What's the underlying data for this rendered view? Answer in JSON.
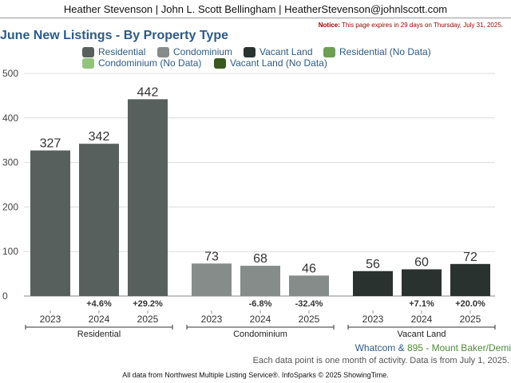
{
  "header": {
    "text": "Heather Stevenson | John L. Scott Bellingham | HeatherStevenson@johnlscott.com"
  },
  "notice": {
    "label": "Notice:",
    "text": "This page expires in 29 days on Thursday, July 31, 2025."
  },
  "legend": {
    "items": [
      {
        "label": "Residential",
        "color": "#58605d"
      },
      {
        "label": "Condominium",
        "color": "#858c89"
      },
      {
        "label": "Vacant Land",
        "color": "#2a3230"
      },
      {
        "label": "Residential (No Data)",
        "color": "#6e9f53"
      },
      {
        "label": "Condominium (No Data)",
        "color": "#93c47d"
      },
      {
        "label": "Vacant Land (No Data)",
        "color": "#37591f"
      }
    ]
  },
  "chart_data": {
    "type": "bar",
    "title": "June New Listings - By Property Type",
    "ylim": [
      0,
      500
    ],
    "yticks": [
      0,
      100,
      200,
      300,
      400,
      500
    ],
    "grid": true,
    "groups": [
      {
        "name": "Residential",
        "color": "#58605d",
        "bars": [
          {
            "year": "2023",
            "value": 327,
            "change": ""
          },
          {
            "year": "2024",
            "value": 342,
            "change": "+4.6%"
          },
          {
            "year": "2025",
            "value": 442,
            "change": "+29.2%"
          }
        ]
      },
      {
        "name": "Condominium",
        "color": "#858c89",
        "bars": [
          {
            "year": "2023",
            "value": 73,
            "change": ""
          },
          {
            "year": "2024",
            "value": 68,
            "change": "-6.8%"
          },
          {
            "year": "2025",
            "value": 46,
            "change": "-32.4%"
          }
        ]
      },
      {
        "name": "Vacant Land",
        "color": "#2a3230",
        "bars": [
          {
            "year": "2023",
            "value": 56,
            "change": ""
          },
          {
            "year": "2024",
            "value": 60,
            "change": "+7.1%"
          },
          {
            "year": "2025",
            "value": 72,
            "change": "+20.0%"
          }
        ]
      }
    ]
  },
  "footer": {
    "region_part1": "Whatcom",
    "region_amp": " & ",
    "region_part2": "895 - Mount Baker/Demi",
    "note": "Each data point is one month of activity. Data is from July 1, 2025.",
    "credit": "All data from Northwest Multiple Listing Service®. InfoSparks © 2025 ShowingTime."
  }
}
